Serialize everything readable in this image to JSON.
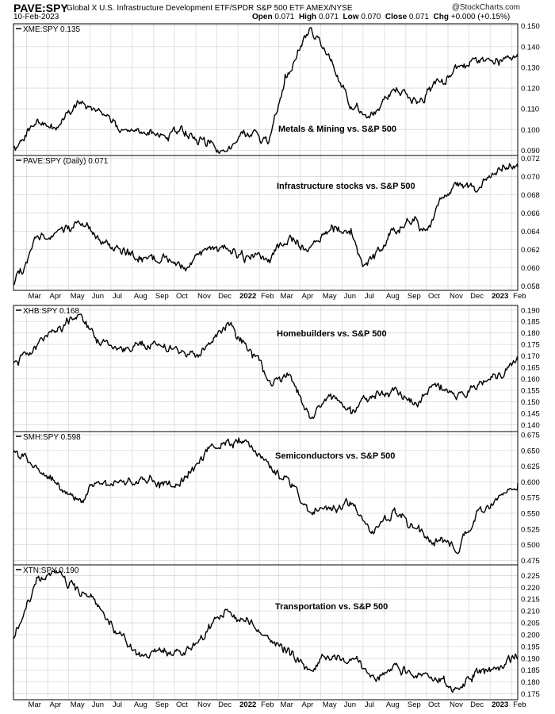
{
  "header": {
    "symbol": "PAVE:SPY",
    "full_name": "Global X U.S. Infrastructure Development ETF/SPDR S&P 500 ETF  AMEX/NYSE",
    "date": "10-Feb-2023",
    "watermark": "@StockCharts.com",
    "open_label": "Open",
    "open": "0.071",
    "high_label": "High",
    "high": "0.071",
    "low_label": "Low",
    "low": "0.070",
    "close_label": "Close",
    "close": "0.071",
    "chg_label": "Chg",
    "chg": "+0.000 (+0.15%)"
  },
  "chart_data": [
    {
      "type": "line",
      "label": "XME:SPY 0.135",
      "annotation": "Metals & Mining vs. S&P 500",
      "ylim": [
        0.0875,
        0.151
      ],
      "yticks": [
        "0.150",
        "0.140",
        "0.130",
        "0.120",
        "0.110",
        "0.100",
        "0.090"
      ],
      "x": [
        "2021-02-10",
        "2021-03-15",
        "2021-04-15",
        "2021-05-15",
        "2021-06-15",
        "2021-07-15",
        "2021-08-15",
        "2021-09-15",
        "2021-10-15",
        "2021-11-15",
        "2021-12-15",
        "2022-01-15",
        "2022-02-15",
        "2022-03-10",
        "2022-04-01",
        "2022-04-15",
        "2022-05-15",
        "2022-06-15",
        "2022-07-15",
        "2022-08-15",
        "2022-09-15",
        "2022-10-15",
        "2022-11-15",
        "2022-12-15",
        "2023-01-15",
        "2023-02-10"
      ],
      "values": [
        0.09,
        0.104,
        0.102,
        0.112,
        0.11,
        0.1,
        0.098,
        0.097,
        0.099,
        0.094,
        0.09,
        0.099,
        0.093,
        0.125,
        0.14,
        0.149,
        0.134,
        0.11,
        0.107,
        0.121,
        0.115,
        0.121,
        0.13,
        0.133,
        0.132,
        0.135
      ]
    },
    {
      "type": "line",
      "label": "PAVE:SPY (Daily) 0.071",
      "annotation": "Infrastructure stocks vs. S&P 500",
      "ylim": [
        0.0575,
        0.0723
      ],
      "yticks": [
        "0.072",
        "0.070",
        "0.068",
        "0.066",
        "0.064",
        "0.062",
        "0.060",
        "0.058"
      ],
      "x": [
        "2021-02-10",
        "2021-03-15",
        "2021-04-15",
        "2021-05-15",
        "2021-06-15",
        "2021-07-15",
        "2021-08-15",
        "2021-09-15",
        "2021-10-15",
        "2021-11-15",
        "2021-12-15",
        "2022-01-15",
        "2022-02-15",
        "2022-03-15",
        "2022-04-15",
        "2022-05-15",
        "2022-06-15",
        "2022-07-01",
        "2022-07-15",
        "2022-08-15",
        "2022-09-15",
        "2022-10-01",
        "2022-10-15",
        "2022-11-15",
        "2022-12-15",
        "2023-01-15",
        "2023-02-10"
      ],
      "values": [
        0.058,
        0.063,
        0.064,
        0.065,
        0.063,
        0.062,
        0.061,
        0.061,
        0.06,
        0.062,
        0.062,
        0.061,
        0.061,
        0.063,
        0.062,
        0.064,
        0.064,
        0.06,
        0.061,
        0.064,
        0.065,
        0.064,
        0.067,
        0.069,
        0.069,
        0.071,
        0.071
      ]
    },
    {
      "type": "line",
      "label": "XHB:SPY 0.168",
      "annotation": "Homebuilders vs. S&P 500",
      "ylim": [
        0.137,
        0.192
      ],
      "yticks": [
        "0.190",
        "0.185",
        "0.180",
        "0.175",
        "0.170",
        "0.165",
        "0.160",
        "0.155",
        "0.150",
        "0.145",
        "0.140"
      ],
      "x": [
        "2021-02-10",
        "2021-03-15",
        "2021-04-15",
        "2021-05-15",
        "2021-06-15",
        "2021-07-15",
        "2021-08-15",
        "2021-09-15",
        "2021-10-15",
        "2021-11-15",
        "2021-12-15",
        "2022-01-15",
        "2022-02-15",
        "2022-03-15",
        "2022-04-15",
        "2022-05-15",
        "2022-06-15",
        "2022-07-15",
        "2022-08-15",
        "2022-09-15",
        "2022-10-15",
        "2022-11-15",
        "2022-12-15",
        "2023-01-15",
        "2023-02-10"
      ],
      "values": [
        0.166,
        0.175,
        0.182,
        0.188,
        0.175,
        0.172,
        0.175,
        0.175,
        0.17,
        0.172,
        0.184,
        0.174,
        0.16,
        0.162,
        0.142,
        0.153,
        0.145,
        0.153,
        0.155,
        0.15,
        0.157,
        0.152,
        0.158,
        0.162,
        0.168
      ]
    },
    {
      "type": "line",
      "label": "SMH:SPY 0.598",
      "annotation": "Semiconductors vs. S&P 500",
      "ylim": [
        0.468,
        0.68
      ],
      "yticks": [
        "0.675",
        "0.650",
        "0.625",
        "0.600",
        "0.575",
        "0.550",
        "0.525",
        "0.500",
        "0.475"
      ],
      "x": [
        "2021-02-10",
        "2021-03-15",
        "2021-04-15",
        "2021-05-15",
        "2021-06-15",
        "2021-07-15",
        "2021-08-15",
        "2021-09-15",
        "2021-10-15",
        "2021-11-15",
        "2021-12-15",
        "2022-01-15",
        "2022-02-15",
        "2022-03-15",
        "2022-04-15",
        "2022-05-15",
        "2022-06-15",
        "2022-07-15",
        "2022-08-15",
        "2022-09-15",
        "2022-10-15",
        "2022-11-15",
        "2022-12-15",
        "2023-01-15",
        "2023-02-10"
      ],
      "values": [
        0.65,
        0.62,
        0.595,
        0.57,
        0.6,
        0.595,
        0.61,
        0.595,
        0.6,
        0.65,
        0.665,
        0.66,
        0.625,
        0.6,
        0.555,
        0.555,
        0.57,
        0.52,
        0.555,
        0.52,
        0.505,
        0.49,
        0.55,
        0.58,
        0.598
      ]
    },
    {
      "type": "line",
      "label": "XTN:SPY 0.190",
      "annotation": "Transportation vs. S&P 500",
      "ylim": [
        0.1725,
        0.2295
      ],
      "yticks": [
        "0.225",
        "0.220",
        "0.215",
        "0.210",
        "0.205",
        "0.200",
        "0.195",
        "0.190",
        "0.185",
        "0.180",
        "0.175"
      ],
      "x": [
        "2021-02-10",
        "2021-03-15",
        "2021-04-15",
        "2021-05-15",
        "2021-06-15",
        "2021-07-15",
        "2021-08-15",
        "2021-09-15",
        "2021-10-15",
        "2021-11-15",
        "2021-12-15",
        "2022-01-15",
        "2022-02-15",
        "2022-03-15",
        "2022-04-15",
        "2022-05-15",
        "2022-06-15",
        "2022-07-15",
        "2022-08-15",
        "2022-09-15",
        "2022-10-15",
        "2022-11-15",
        "2022-12-15",
        "2023-01-15",
        "2023-02-10"
      ],
      "values": [
        0.2,
        0.222,
        0.226,
        0.218,
        0.212,
        0.198,
        0.19,
        0.193,
        0.192,
        0.2,
        0.21,
        0.205,
        0.198,
        0.193,
        0.185,
        0.192,
        0.19,
        0.18,
        0.186,
        0.183,
        0.18,
        0.178,
        0.183,
        0.186,
        0.19
      ]
    }
  ],
  "x_axis": {
    "start": "2021-02-10",
    "end": "2023-02-10",
    "ticks": [
      {
        "label": "Mar",
        "date": "2021-03-01",
        "bold": false
      },
      {
        "label": "Apr",
        "date": "2021-04-01",
        "bold": false
      },
      {
        "label": "May",
        "date": "2021-05-01",
        "bold": false
      },
      {
        "label": "Jun",
        "date": "2021-06-01",
        "bold": false
      },
      {
        "label": "Jul",
        "date": "2021-07-01",
        "bold": false
      },
      {
        "label": "Aug",
        "date": "2021-08-01",
        "bold": false
      },
      {
        "label": "Sep",
        "date": "2021-09-01",
        "bold": false
      },
      {
        "label": "Oct",
        "date": "2021-10-01",
        "bold": false
      },
      {
        "label": "Nov",
        "date": "2021-11-01",
        "bold": false
      },
      {
        "label": "Dec",
        "date": "2021-12-01",
        "bold": false
      },
      {
        "label": "2022",
        "date": "2022-01-01",
        "bold": true
      },
      {
        "label": "Feb",
        "date": "2022-02-01",
        "bold": false
      },
      {
        "label": "Mar",
        "date": "2022-03-01",
        "bold": false
      },
      {
        "label": "Apr",
        "date": "2022-04-01",
        "bold": false
      },
      {
        "label": "May",
        "date": "2022-05-01",
        "bold": false
      },
      {
        "label": "Jun",
        "date": "2022-06-01",
        "bold": false
      },
      {
        "label": "Jul",
        "date": "2022-07-01",
        "bold": false
      },
      {
        "label": "Aug",
        "date": "2022-08-01",
        "bold": false
      },
      {
        "label": "Sep",
        "date": "2022-09-01",
        "bold": false
      },
      {
        "label": "Oct",
        "date": "2022-10-01",
        "bold": false
      },
      {
        "label": "Nov",
        "date": "2022-11-01",
        "bold": false
      },
      {
        "label": "Dec",
        "date": "2022-12-01",
        "bold": false
      },
      {
        "label": "2023",
        "date": "2023-01-01",
        "bold": true
      },
      {
        "label": "Feb",
        "date": "2023-02-01",
        "bold": false
      }
    ]
  }
}
